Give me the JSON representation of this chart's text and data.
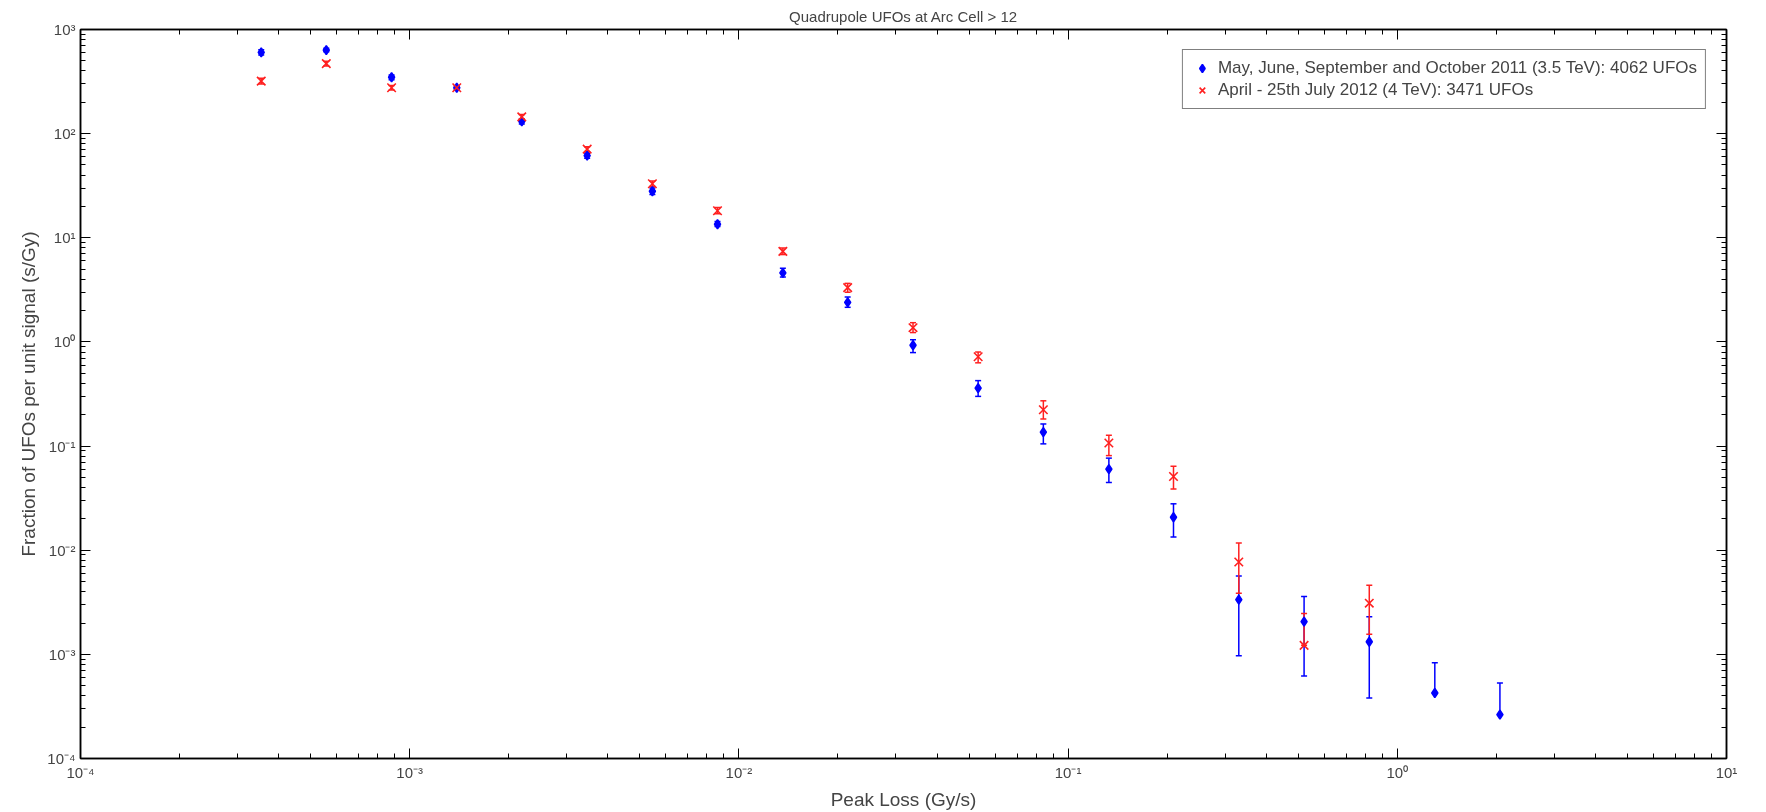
{
  "chart_data": {
    "type": "scatter",
    "title": "Quadrupole UFOs at Arc Cell > 12",
    "xlabel": "Peak Loss (Gy/s)",
    "ylabel": "Fraction of UFOs per unit signal (s/Gy)",
    "log": "xy",
    "grid": false,
    "legend": "top right",
    "xlim": [
      0.0001,
      10
    ],
    "ylim": [
      0.0001,
      1000
    ],
    "xticks": [
      {
        "value": 0.0001,
        "label": "10⁻⁴"
      },
      {
        "value": 0.001,
        "label": "10⁻³"
      },
      {
        "value": 0.01,
        "label": "10⁻²"
      },
      {
        "value": 0.1,
        "label": "10⁻¹"
      },
      {
        "value": 1,
        "label": "10⁰"
      },
      {
        "value": 10,
        "label": "10¹"
      }
    ],
    "yticks": [
      {
        "value": 0.0001,
        "label": "10⁻⁴"
      },
      {
        "value": 0.001,
        "label": "10⁻³"
      },
      {
        "value": 0.01,
        "label": "10⁻²"
      },
      {
        "value": 0.1,
        "label": "10⁻¹"
      },
      {
        "value": 1,
        "label": "10⁰"
      },
      {
        "value": 10,
        "label": "10¹"
      },
      {
        "value": 100,
        "label": "10²"
      },
      {
        "value": 1000,
        "label": "10³"
      }
    ],
    "x": [
      0.000354,
      0.000558,
      0.000881,
      0.00139,
      0.00219,
      0.00346,
      0.00546,
      0.00861,
      0.0136,
      0.0214,
      0.0338,
      0.0533,
      0.0841,
      0.133,
      0.209,
      0.33,
      0.521,
      0.822,
      1.3,
      2.05
    ],
    "series": [
      {
        "name": "May, June, September and October 2011 (3.5 TeV): 4062 UFOs",
        "color": "#0000ff",
        "marker": "diamond",
        "values": [
          603,
          634,
          348,
          276,
          131,
          61.5,
          28,
          13.5,
          4.6,
          2.4,
          0.93,
          0.36,
          0.136,
          0.06,
          0.0207,
          0.00335,
          0.00206,
          0.00132,
          0.000425,
          0.000264
        ],
        "errors": [
          [
            570,
            640
          ],
          [
            610,
            660
          ],
          [
            330,
            365
          ],
          [
            265,
            288
          ],
          [
            124,
            138
          ],
          [
            58,
            65
          ],
          [
            26,
            30
          ],
          [
            12.8,
            14.3
          ],
          [
            4.2,
            5.1
          ],
          [
            2.15,
            2.7
          ],
          [
            0.79,
            1.05
          ],
          [
            0.3,
            0.425
          ],
          [
            0.105,
            0.163
          ],
          [
            0.0447,
            0.0766
          ],
          [
            0.0134,
            0.0279
          ],
          [
            0.00097,
            0.00565
          ],
          [
            0.00062,
            0.0036
          ],
          [
            0.00038,
            0.0023
          ],
          [
            0.000425,
            0.00083
          ],
          [
            0.000264,
            0.00053
          ]
        ]
      },
      {
        "name": "April - 25th July 2012 (4 TeV): 3471 UFOs",
        "color": "#ff2020",
        "marker": "cross",
        "values": [
          319,
          470,
          276,
          276,
          145,
          71,
          33,
          18.2,
          7.4,
          3.32,
          1.37,
          0.72,
          0.223,
          0.107,
          0.051,
          0.0077,
          0.00122,
          0.0031,
          null,
          null
        ],
        "errors": [
          [
            300,
            340
          ],
          [
            445,
            495
          ],
          [
            262,
            290
          ],
          [
            265,
            288
          ],
          [
            138,
            153
          ],
          [
            67,
            75
          ],
          [
            31,
            35
          ],
          [
            17,
            19.5
          ],
          [
            6.9,
            8.0
          ],
          [
            3.0,
            3.65
          ],
          [
            1.23,
            1.53
          ],
          [
            0.63,
            0.8
          ],
          [
            0.182,
            0.272
          ],
          [
            0.081,
            0.127
          ],
          [
            0.0387,
            0.064
          ],
          [
            0.00386,
            0.0117
          ],
          [
            0.00122,
            0.00247
          ],
          [
            0.00156,
            0.0046
          ],
          null,
          null
        ]
      }
    ]
  }
}
